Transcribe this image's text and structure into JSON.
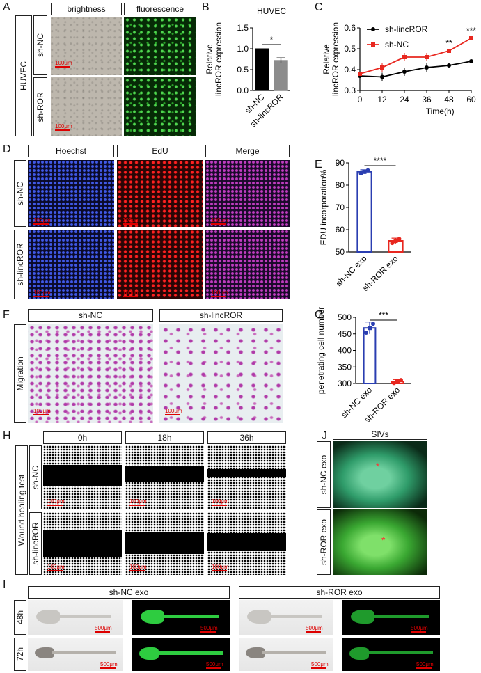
{
  "panels": {
    "A": {
      "label": "A",
      "col_headers": [
        "brightness",
        "fluorescence"
      ],
      "group_label": "HUVEC",
      "row_labels": [
        "sh-NC",
        "sh-ROR"
      ],
      "scale_label": "100μm"
    },
    "B": {
      "label": "B"
    },
    "C": {
      "label": "C"
    },
    "D": {
      "label": "D",
      "col_headers": [
        "Hoechst",
        "EdU",
        "Merge"
      ],
      "row_labels": [
        "sh-NC",
        "sh-lincROR"
      ],
      "scale_label": "100μm"
    },
    "E": {
      "label": "E"
    },
    "F": {
      "label": "F",
      "col_headers": [
        "sh-NC",
        "sh-lincROR"
      ],
      "row_label": "Migration",
      "scale_label": "100μm"
    },
    "G": {
      "label": "G"
    },
    "H": {
      "label": "H",
      "col_headers": [
        "0h",
        "18h",
        "36h"
      ],
      "group_label": "Wound healing test",
      "row_labels": [
        "sh-NC",
        "sh-lincROR"
      ],
      "scale_label": "100μm"
    },
    "J": {
      "label": "J",
      "col_header": "SIVs",
      "row_labels": [
        "sh-NC exo",
        "sh-ROR exo"
      ],
      "marker": "*"
    },
    "I": {
      "label": "I",
      "group_headers": [
        "sh-NC exo",
        "sh-ROR exo"
      ],
      "row_labels": [
        "48h",
        "72h"
      ],
      "scale_label": "500μm"
    }
  },
  "chart_data": [
    {
      "id": "B",
      "type": "bar",
      "title": "HUVEC",
      "ylabel": "Relative lincROR expression",
      "categories": [
        "sh-NC",
        "sh-lincROR"
      ],
      "values": [
        1.0,
        0.72
      ],
      "errors": [
        0,
        0.06
      ],
      "colors": [
        "#000000",
        "#8c8c8c"
      ],
      "ylim": [
        0,
        1.5
      ],
      "yticks": [
        "0.0",
        "0.5",
        "1.0",
        "1.5"
      ],
      "significance": "*"
    },
    {
      "id": "C",
      "type": "line",
      "xlabel": "Time(h)",
      "ylabel": "Relative lincROR expression",
      "x": [
        0,
        12,
        24,
        36,
        48,
        60
      ],
      "xticks": [
        "0",
        "12",
        "24",
        "36",
        "48",
        "60"
      ],
      "ylim": [
        0.3,
        0.6
      ],
      "yticks": [
        "0.3",
        "0.4",
        "0.5",
        "0.6"
      ],
      "series": [
        {
          "name": "sh-lincROR",
          "color": "#000000",
          "values": [
            0.37,
            0.365,
            0.39,
            0.41,
            0.42,
            0.44
          ]
        },
        {
          "name": "sh-NC",
          "color": "#e8271f",
          "values": [
            0.38,
            0.41,
            0.46,
            0.46,
            0.49,
            0.55
          ]
        }
      ],
      "significance": [
        {
          "x": 48,
          "text": "**"
        },
        {
          "x": 60,
          "text": "***"
        }
      ],
      "legend": "top-left"
    },
    {
      "id": "E",
      "type": "bar",
      "ylabel": "EDU incorporation%",
      "categories": [
        "sh-NC exo",
        "sh-ROR exo"
      ],
      "values": [
        86,
        55
      ],
      "errors": [
        0.9,
        1.2
      ],
      "colors": [
        "#2a3eb1",
        "#e8271f"
      ],
      "ylim": [
        50,
        90
      ],
      "yticks": [
        "50",
        "60",
        "70",
        "80",
        "90"
      ],
      "significance": "****"
    },
    {
      "id": "G",
      "type": "bar",
      "ylabel": "penetrating cell number",
      "categories": [
        "sh-NC exo",
        "sh-ROR exo"
      ],
      "values": [
        468,
        306
      ],
      "errors": [
        18,
        6
      ],
      "colors": [
        "#2a3eb1",
        "#e8271f"
      ],
      "ylim": [
        300,
        500
      ],
      "yticks": [
        "300",
        "350",
        "400",
        "450",
        "500"
      ],
      "significance": "***"
    }
  ]
}
